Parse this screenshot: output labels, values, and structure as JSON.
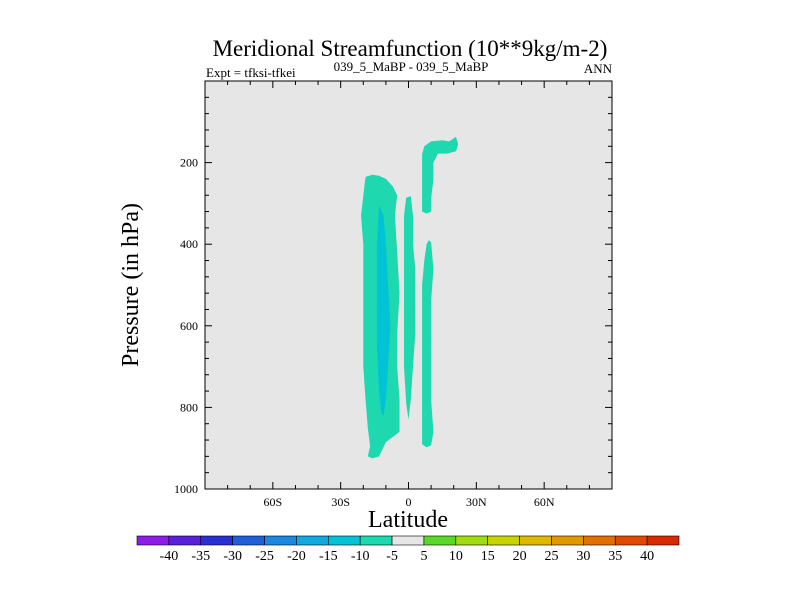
{
  "chart_data": {
    "type": "contour",
    "title": "Meridional Streamfunction (10**9kg/m-2)",
    "left_label": "Expt = tfksi-tfkei",
    "center_label": "039_5_MaBP - 039_5_MaBP",
    "right_label": "ANN",
    "xlabel": "Latitude",
    "ylabel": "Pressure (in hPa)",
    "xlim": [
      -90,
      90
    ],
    "ylim": [
      1000,
      0
    ],
    "x_ticks": [
      -60,
      -30,
      0,
      30,
      60
    ],
    "x_tick_labels": [
      "60S",
      "30S",
      "0",
      "30N",
      "60N"
    ],
    "y_ticks": [
      200,
      400,
      600,
      800,
      1000
    ],
    "y_tick_labels": [
      "200",
      "400",
      "600",
      "800",
      "1000"
    ],
    "background_color": "#e6e6e6",
    "colorbar": {
      "labels": [
        "-40",
        "-35",
        "-30",
        "-25",
        "-20",
        "-15",
        "-10",
        "-5",
        "5",
        "10",
        "15",
        "20",
        "25",
        "30",
        "35",
        "40"
      ],
      "colors": [
        "#8c1ee6",
        "#5a1fd8",
        "#2a2fd0",
        "#1f5fd8",
        "#1e87e0",
        "#14a8e0",
        "#00c4d6",
        "#1ed8b0",
        "#e6e6e6",
        "#5ad82a",
        "#9fdc14",
        "#c8d400",
        "#e0b800",
        "#e09a00",
        "#e07000",
        "#e04a00",
        "#d82a00"
      ]
    },
    "contour_regions": [
      {
        "name": "southern-cell-outer",
        "level": "-5",
        "color": "#1ed8b0",
        "polygon": [
          [
            -19,
            235
          ],
          [
            -16,
            230
          ],
          [
            -13,
            232
          ],
          [
            -10,
            240
          ],
          [
            -7,
            258
          ],
          [
            -5,
            280
          ],
          [
            -6,
            330
          ],
          [
            -5,
            420
          ],
          [
            -4,
            520
          ],
          [
            -5,
            620
          ],
          [
            -5,
            700
          ],
          [
            -4,
            780
          ],
          [
            -4,
            860
          ],
          [
            -10,
            885
          ],
          [
            -13,
            920
          ],
          [
            -16,
            925
          ],
          [
            -18,
            920
          ],
          [
            -17,
            895
          ],
          [
            -18,
            850
          ],
          [
            -19,
            780
          ],
          [
            -20,
            700
          ],
          [
            -20,
            620
          ],
          [
            -20,
            520
          ],
          [
            -20,
            400
          ],
          [
            -21,
            330
          ]
        ]
      },
      {
        "name": "southern-cell-core",
        "level": "-10",
        "color": "#00c4d6",
        "polygon": [
          [
            -13,
            305
          ],
          [
            -11,
            330
          ],
          [
            -10,
            400
          ],
          [
            -9,
            500
          ],
          [
            -8,
            600
          ],
          [
            -9,
            700
          ],
          [
            -10,
            780
          ],
          [
            -11,
            820
          ],
          [
            -12,
            815
          ],
          [
            -13,
            760
          ],
          [
            -14,
            650
          ],
          [
            -14,
            520
          ],
          [
            -14,
            400
          ]
        ]
      },
      {
        "name": "equatorial-strip",
        "level": "-5",
        "color": "#1ed8b0",
        "polygon": [
          [
            -1,
            286
          ],
          [
            1,
            282
          ],
          [
            2,
            330
          ],
          [
            2,
            400
          ],
          [
            3,
            460
          ],
          [
            3,
            540
          ],
          [
            3,
            620
          ],
          [
            2,
            700
          ],
          [
            1,
            780
          ],
          [
            0,
            830
          ],
          [
            -1,
            790
          ],
          [
            -2,
            700
          ],
          [
            -2,
            620
          ],
          [
            -2,
            540
          ],
          [
            -2,
            460
          ],
          [
            -2,
            400
          ],
          [
            -2,
            330
          ]
        ]
      },
      {
        "name": "northern-upper-lobe",
        "level": "-5",
        "color": "#1ed8b0",
        "polygon": [
          [
            7,
            160
          ],
          [
            10,
            148
          ],
          [
            15,
            145
          ],
          [
            18,
            148
          ],
          [
            21,
            137
          ],
          [
            22,
            155
          ],
          [
            21,
            172
          ],
          [
            17,
            178
          ],
          [
            13,
            178
          ],
          [
            11,
            200
          ],
          [
            11,
            240
          ],
          [
            10,
            290
          ],
          [
            10,
            320
          ],
          [
            8,
            325
          ],
          [
            6,
            320
          ],
          [
            6,
            280
          ],
          [
            6,
            230
          ],
          [
            6,
            180
          ]
        ]
      },
      {
        "name": "northern-lower-lobe",
        "level": "-5",
        "color": "#1ed8b0",
        "polygon": [
          [
            8,
            400
          ],
          [
            9,
            390
          ],
          [
            10,
            395
          ],
          [
            11,
            460
          ],
          [
            10,
            540
          ],
          [
            10,
            620
          ],
          [
            10,
            700
          ],
          [
            10,
            780
          ],
          [
            11,
            860
          ],
          [
            10,
            893
          ],
          [
            8,
            898
          ],
          [
            6,
            890
          ],
          [
            6,
            820
          ],
          [
            6,
            740
          ],
          [
            6,
            650
          ],
          [
            6,
            560
          ],
          [
            6,
            500
          ],
          [
            7,
            440
          ]
        ]
      }
    ]
  }
}
